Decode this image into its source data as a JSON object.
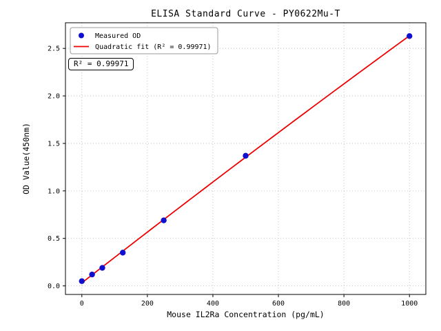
{
  "chart_data": {
    "type": "scatter",
    "title": "ELISA Standard Curve - PY0622Mu-T",
    "xlabel": "Mouse IL2Ra Concentration (pg/mL)",
    "ylabel": "OD Value(450nm)",
    "annotation": "R² = 0.99971",
    "xlim": [
      -50,
      1050
    ],
    "ylim": [
      -0.09,
      2.77
    ],
    "x_ticks": [
      0,
      200,
      400,
      600,
      800,
      1000
    ],
    "y_ticks": [
      0.0,
      0.5,
      1.0,
      1.5,
      2.0,
      2.5
    ],
    "grid": true,
    "legend_position": "upper-left",
    "series": [
      {
        "name": "Measured OD",
        "type": "scatter",
        "color": "#0f0fd0",
        "x": [
          0,
          31.2,
          62.5,
          125,
          250,
          500,
          1000
        ],
        "y": [
          0.05,
          0.12,
          0.19,
          0.35,
          0.69,
          1.37,
          2.63
        ]
      },
      {
        "name": "Quadratic fit (R² = 0.99971)",
        "type": "line",
        "fit": "quadratic",
        "color": "#ee0000",
        "x_range": [
          0,
          1000
        ]
      }
    ]
  },
  "colors": {
    "grid": "#b5b5b5",
    "axis": "#000000",
    "legend_border": "#999999",
    "background": "#ffffff"
  }
}
